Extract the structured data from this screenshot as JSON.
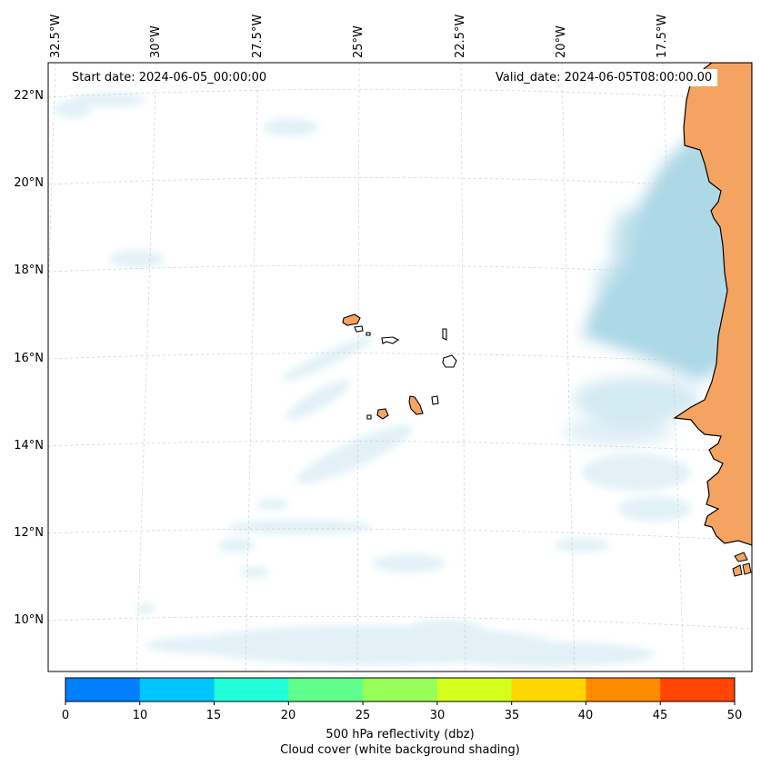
{
  "map": {
    "start_label": "Start date: 2024-06-05_00:00:00",
    "valid_label": "Valid_date: 2024-06-05T08:00:00.00",
    "lon_ticks": [
      "32.5°W",
      "30°W",
      "27.5°W",
      "25°W",
      "22.5°W",
      "20°W",
      "17.5°W"
    ],
    "lat_ticks": [
      "22°N",
      "20°N",
      "18°N",
      "16°N",
      "14°N",
      "12°N",
      "10°N"
    ],
    "colors": {
      "land": "#f4a460",
      "cloud": "#add8e6",
      "coast": "#000000",
      "grid": "#c8c8c8"
    }
  },
  "colorbar": {
    "ticks": [
      "0",
      "10",
      "15",
      "20",
      "25",
      "30",
      "35",
      "40",
      "45",
      "50"
    ],
    "colors": [
      "#007fff",
      "#00c4ff",
      "#20ffd8",
      "#60ff8c",
      "#97ff58",
      "#d4ff1c",
      "#ffd700",
      "#ff8c00",
      "#ff4500"
    ],
    "label_line1": "500 hPa reflectivity (dbz)",
    "label_line2": "Cloud cover (white background shading)"
  }
}
